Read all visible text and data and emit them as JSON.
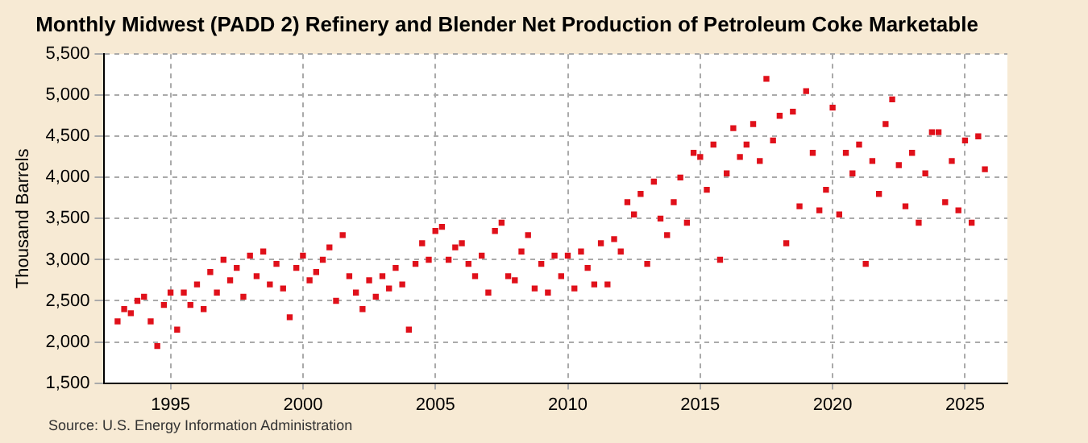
{
  "chart_data": {
    "type": "scatter",
    "title": "Monthly Midwest (PADD 2) Refinery and Blender Net Production of Petroleum Coke Marketable",
    "ylabel": "Thousand Barrels",
    "annotations": [
      "Source: U.S. Energy Information Administration"
    ],
    "x": [
      1993,
      1993.25,
      1993.5,
      1993.75,
      1994,
      1994.25,
      1994.5,
      1994.75,
      1995,
      1995.25,
      1995.5,
      1995.75,
      1996,
      1996.25,
      1996.5,
      1996.75,
      1997,
      1997.25,
      1997.5,
      1997.75,
      1998,
      1998.25,
      1998.5,
      1998.75,
      1999,
      1999.25,
      1999.5,
      1999.75,
      2000,
      2000.25,
      2000.5,
      2000.75,
      2001,
      2001.25,
      2001.5,
      2001.75,
      2002,
      2002.25,
      2002.5,
      2002.75,
      2003,
      2003.25,
      2003.5,
      2003.75,
      2004,
      2004.25,
      2004.5,
      2004.75,
      2005,
      2005.25,
      2005.5,
      2005.75,
      2006,
      2006.25,
      2006.5,
      2006.75,
      2007,
      2007.25,
      2007.5,
      2007.75,
      2008,
      2008.25,
      2008.5,
      2008.75,
      2009,
      2009.25,
      2009.5,
      2009.75,
      2010,
      2010.25,
      2010.5,
      2010.75,
      2011,
      2011.25,
      2011.5,
      2011.75,
      2012,
      2012.25,
      2012.5,
      2012.75,
      2013,
      2013.25,
      2013.5,
      2013.75,
      2014,
      2014.25,
      2014.5,
      2014.75,
      2015,
      2015.25,
      2015.5,
      2015.75,
      2016,
      2016.25,
      2016.5,
      2016.75,
      2017,
      2017.25,
      2017.5,
      2017.75,
      2018,
      2018.25,
      2018.5,
      2018.75,
      2019,
      2019.25,
      2019.5,
      2019.75,
      2020,
      2020.25,
      2020.5,
      2020.75,
      2021,
      2021.25,
      2021.5,
      2021.75,
      2022,
      2022.25,
      2022.5,
      2022.75,
      2023,
      2023.25,
      2023.5,
      2023.75,
      2024,
      2024.25,
      2024.5,
      2024.75,
      2025,
      2025.25,
      2025.5,
      2025.75
    ],
    "series": [
      {
        "color": "#e0101a",
        "values": [
          2250,
          2400,
          2350,
          2500,
          2550,
          2250,
          1950,
          2450,
          2600,
          2150,
          2600,
          2450,
          2700,
          2400,
          2850,
          2600,
          3000,
          2750,
          2900,
          2550,
          3050,
          2800,
          3100,
          2700,
          2950,
          2650,
          2300,
          2900,
          3050,
          2750,
          2850,
          3000,
          3150,
          2500,
          3300,
          2800,
          2600,
          2400,
          2750,
          2550,
          2800,
          2650,
          2900,
          2700,
          2150,
          2950,
          3200,
          3000,
          3350,
          3400,
          3000,
          3150,
          3200,
          2950,
          2800,
          3050,
          2600,
          3350,
          3450,
          2800,
          2750,
          3100,
          3300,
          2650,
          2950,
          2600,
          3050,
          2800,
          3050,
          2650,
          3100,
          2900,
          2700,
          3200,
          2700,
          3250,
          3100,
          3700,
          3550,
          3800,
          2950,
          3950,
          3500,
          3300,
          3700,
          4000,
          3450,
          4300,
          4250,
          3850,
          4400,
          3000,
          4050,
          4600,
          4250,
          4400,
          4650,
          4200,
          5200,
          4450,
          4750,
          3200,
          4800,
          3650,
          5050,
          4300,
          3600,
          3850,
          4850,
          3550,
          4300,
          4050,
          4400,
          2950,
          4200,
          3800,
          4650,
          4950,
          4150,
          3650,
          4300,
          3450,
          4050,
          4550,
          4550,
          3700,
          4200,
          3600,
          4450,
          3450,
          4500,
          4100
        ]
      }
    ],
    "xlim": [
      1992.5,
      2026.6
    ],
    "xticks": [
      1995,
      2000,
      2005,
      2010,
      2015,
      2020,
      2025
    ],
    "ylim": [
      1500,
      5500
    ],
    "yticks": [
      {
        "value": 1500,
        "label": "1,500"
      },
      {
        "value": 2000,
        "label": "2,000"
      },
      {
        "value": 2500,
        "label": "2,500"
      },
      {
        "value": 3000,
        "label": "3,000"
      },
      {
        "value": 3500,
        "label": "3,500"
      },
      {
        "value": 4000,
        "label": "4,000"
      },
      {
        "value": 4500,
        "label": "4,500"
      },
      {
        "value": 5000,
        "label": "5,000"
      },
      {
        "value": 5500,
        "label": "5,500"
      }
    ],
    "grid": true,
    "legend": false,
    "marker": "square"
  }
}
